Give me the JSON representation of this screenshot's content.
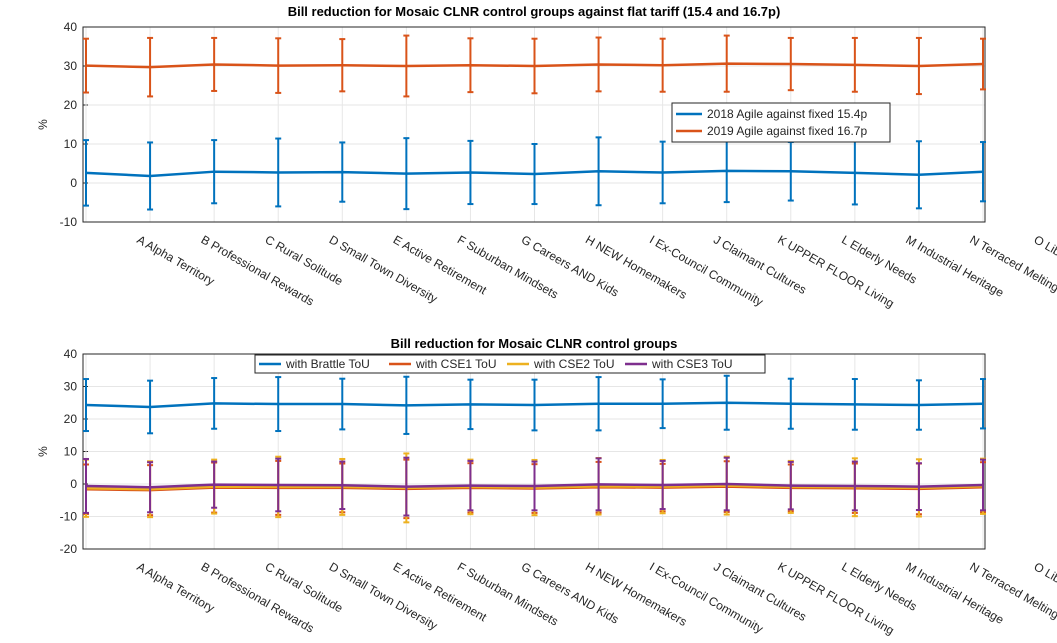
{
  "chart_data": [
    {
      "type": "line",
      "title": "Bill reduction for Mosaic CLNR control groups against flat tariff (15.4 and 16.7p)",
      "ylabel": "%",
      "categories": [
        "A Alpha Territory",
        "B Professional Rewards",
        "C Rural Solitude",
        "D Small Town Diversity",
        "E Active Retirement",
        "F Suburban Mindsets",
        "G Careers AND Kids",
        "H NEW Homemakers",
        "I Ex-Council Community",
        "J Claimant Cultures",
        "K UPPER FLOOR Living",
        "L Elderly Needs",
        "M Industrial Heritage",
        "N Terraced Melting Pot",
        "O Liberal Opinions"
      ],
      "ylim": [
        -10,
        40
      ],
      "yticks": [
        -10,
        0,
        10,
        20,
        30,
        40
      ],
      "grid": true,
      "legend": "right",
      "series": [
        {
          "name": "2018 Agile against fixed 15.4p",
          "color": "#0072bd",
          "values": [
            2.6,
            1.8,
            2.9,
            2.7,
            2.8,
            2.4,
            2.7,
            2.3,
            3.0,
            2.7,
            3.1,
            3.0,
            2.6,
            2.1,
            2.9
          ],
          "errors": [
            8.4,
            8.6,
            8.1,
            8.7,
            7.6,
            9.1,
            8.1,
            7.7,
            8.7,
            7.9,
            8.0,
            7.5,
            8.1,
            8.6,
            7.6
          ]
        },
        {
          "name": "2019 Agile against fixed 16.7p",
          "color": "#d95319",
          "values": [
            30.1,
            29.7,
            30.4,
            30.1,
            30.2,
            30.0,
            30.2,
            30.0,
            30.4,
            30.2,
            30.6,
            30.5,
            30.3,
            30.0,
            30.5
          ],
          "errors": [
            6.9,
            7.5,
            6.8,
            7.0,
            6.7,
            7.8,
            6.9,
            7.0,
            6.9,
            6.8,
            7.2,
            6.7,
            6.9,
            7.2,
            6.5
          ]
        }
      ]
    },
    {
      "type": "line",
      "title": "Bill reduction for Mosaic CLNR control groups",
      "ylabel": "%",
      "categories": [
        "A Alpha Territory",
        "B Professional Rewards",
        "C Rural Solitude",
        "D Small Town Diversity",
        "E Active Retirement",
        "F Suburban Mindsets",
        "G Careers AND Kids",
        "H NEW Homemakers",
        "I Ex-Council Community",
        "J Claimant Cultures",
        "K UPPER FLOOR Living",
        "L Elderly Needs",
        "M Industrial Heritage",
        "N Terraced Melting Pot",
        "O Liberal Opinions"
      ],
      "ylim": [
        -20,
        40
      ],
      "yticks": [
        -20,
        -10,
        0,
        10,
        20,
        30,
        40
      ],
      "grid": true,
      "legend": "top",
      "series": [
        {
          "name": "with Brattle ToU",
          "color": "#0072bd",
          "values": [
            24.3,
            23.7,
            24.8,
            24.6,
            24.6,
            24.2,
            24.5,
            24.3,
            24.7,
            24.7,
            25.0,
            24.7,
            24.5,
            24.3,
            24.7
          ],
          "errors": [
            8.0,
            8.1,
            7.8,
            8.3,
            7.8,
            8.8,
            7.6,
            7.8,
            8.2,
            7.5,
            8.3,
            7.7,
            7.8,
            7.6,
            7.6
          ]
        },
        {
          "name": "with CSE1 ToU",
          "color": "#d95319",
          "values": [
            -1.6,
            -1.9,
            -1.1,
            -1.2,
            -1.2,
            -1.5,
            -1.2,
            -1.4,
            -1.0,
            -1.1,
            -0.8,
            -1.2,
            -1.3,
            -1.5,
            -1.0
          ],
          "errors": [
            7.6,
            7.7,
            7.7,
            8.3,
            7.5,
            9.0,
            7.6,
            7.5,
            7.8,
            7.3,
            7.8,
            7.2,
            7.6,
            7.8,
            7.7
          ]
        },
        {
          "name": "with CSE2 ToU",
          "color": "#edb120",
          "values": [
            -1.3,
            -1.6,
            -0.8,
            -0.9,
            -0.9,
            -1.2,
            -0.9,
            -1.1,
            -0.7,
            -0.8,
            -0.5,
            -0.9,
            -1.0,
            -1.2,
            -0.7
          ],
          "errors": [
            8.8,
            8.6,
            8.3,
            9.3,
            8.6,
            10.6,
            8.4,
            8.5,
            8.7,
            8.2,
            8.9,
            8.0,
            8.9,
            8.8,
            8.5
          ]
        },
        {
          "name": "with CSE3 ToU",
          "color": "#7e2f8e",
          "values": [
            -0.6,
            -1.0,
            -0.2,
            -0.3,
            -0.4,
            -0.8,
            -0.5,
            -0.6,
            -0.1,
            -0.3,
            0.0,
            -0.5,
            -0.6,
            -0.8,
            -0.3
          ],
          "errors": [
            8.3,
            7.7,
            7.1,
            8.1,
            7.3,
            8.9,
            7.6,
            7.5,
            8.0,
            7.4,
            8.1,
            7.3,
            7.5,
            7.2,
            7.8
          ]
        }
      ]
    }
  ]
}
